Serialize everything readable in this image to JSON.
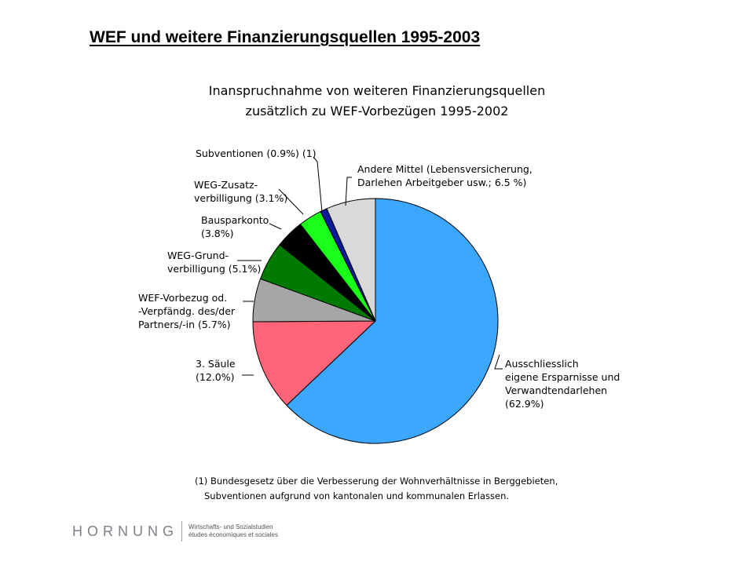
{
  "slide": {
    "title": "WEF und weitere Finanzierungsquellen 1995-2003"
  },
  "chart_data": {
    "type": "pie",
    "title": [
      "Inanspruchnahme von weiteren Finanzierungsquellen",
      "zusätzlich zu WEF-Vorbezügen 1995-2002"
    ],
    "slices": [
      {
        "label": [
          "Ausschliesslich",
          "eigene Ersparnisse und",
          "Verwandtendarlehen",
          "(62.9%)"
        ],
        "value": 62.9,
        "color": "#3ba7ff"
      },
      {
        "label": [
          "3. Säule",
          "(12.0%)"
        ],
        "value": 12.0,
        "color": "#ff6478"
      },
      {
        "label": [
          "WEF-Vorbezug od.",
          "-Verpfändg. des/der",
          "Partners/-in (5.7%)"
        ],
        "value": 5.7,
        "color": "#a6a6a6"
      },
      {
        "label": [
          "WEG-Grund-",
          "verbilligung (5.1%)"
        ],
        "value": 5.1,
        "color": "#007a00"
      },
      {
        "label": [
          "Bausparkonto",
          "(3.8%)"
        ],
        "value": 3.8,
        "color": "#000000"
      },
      {
        "label": [
          "WEG-Zusatz-",
          "verbilligung (3.1%)"
        ],
        "value": 3.1,
        "color": "#19ff19"
      },
      {
        "label": [
          "Subventionen (0.9%) (1)"
        ],
        "value": 0.9,
        "color": "#0a1a9a"
      },
      {
        "label": [
          "Andere Mittel (Lebensversicherung,",
          "Darlehen Arbeitgeber usw.; 6.5 %)"
        ],
        "value": 6.5,
        "color": "#d9d9d9"
      }
    ],
    "start": "12 o'clock",
    "direction": "clockwise"
  },
  "footnote": {
    "line1": "(1) Bundesgesetz über die Verbesserung der Wohnverhältnisse in Berggebieten,",
    "line2": "Subventionen aufgrund von kantonalen und kommunalen Erlassen."
  },
  "logo": {
    "name": "HORNUNG",
    "line1": "Wirtschafts- und Sozialstudien",
    "line2": "études économiques et sociales"
  }
}
